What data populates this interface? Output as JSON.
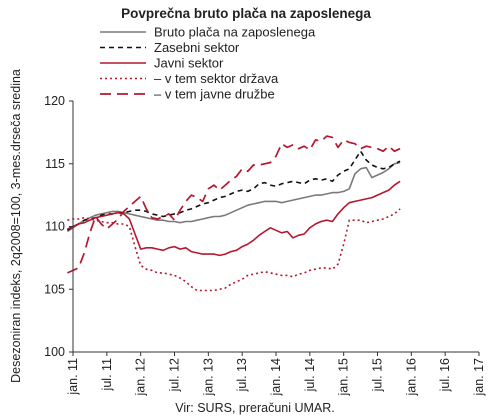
{
  "chart_data": {
    "type": "line",
    "title": "Povprečna bruto plača na zaposlenega",
    "ylabel": "Desezoniran indeks, 2q2008=100, 3-mes.drseča sredina",
    "source": "Vir: SURS, preračuni UMAR.",
    "ylim": [
      100,
      120
    ],
    "yticks": [
      100,
      105,
      110,
      115,
      120
    ],
    "xticks": [
      "jan. 11",
      "jul. 11",
      "jan. 12",
      "jul. 12",
      "jan. 13",
      "jul. 13",
      "jan. 14",
      "jul. 14",
      "jan. 15",
      "jul. 15",
      "jan. 16",
      "jul. 16",
      "jan. 17"
    ],
    "x_start": "2011-01",
    "x_end": "2017-01",
    "legend_position": "top-left",
    "grid": false,
    "series": [
      {
        "name": "Bruto plača na zaposlenega",
        "color": "#7a7a7a",
        "dash": "solid",
        "start": "2010-12",
        "values": [
          109.6,
          109.9,
          110.2,
          110.5,
          110.7,
          110.9,
          111.0,
          111.1,
          111.2,
          111.2,
          111.1,
          111.0,
          110.9,
          110.8,
          110.7,
          110.6,
          110.5,
          110.5,
          110.4,
          110.4,
          110.3,
          110.4,
          110.4,
          110.5,
          110.6,
          110.7,
          110.8,
          110.8,
          110.9,
          111.1,
          111.3,
          111.5,
          111.7,
          111.8,
          111.9,
          112.0,
          112.0,
          112.0,
          111.9,
          112.0,
          112.1,
          112.2,
          112.3,
          112.4,
          112.5,
          112.5,
          112.6,
          112.7,
          112.7,
          112.8,
          113.0,
          114.2,
          114.6,
          114.7,
          113.9,
          114.1,
          114.3,
          114.6,
          115.0,
          115.1
        ]
      },
      {
        "name": "Zasebni sektor",
        "color": "#111111",
        "dash": "dashed",
        "start": "2010-12",
        "values": [
          109.7,
          110.0,
          110.2,
          110.5,
          110.6,
          110.7,
          110.9,
          111.0,
          111.0,
          111.1,
          111.1,
          111.2,
          111.3,
          111.3,
          111.2,
          111.0,
          110.9,
          110.8,
          110.9,
          111.0,
          111.1,
          111.3,
          111.4,
          111.6,
          111.8,
          111.9,
          112.1,
          112.3,
          112.4,
          112.6,
          112.8,
          112.9,
          112.8,
          113.0,
          113.4,
          113.5,
          113.3,
          113.2,
          113.4,
          113.5,
          113.6,
          113.5,
          113.4,
          113.7,
          113.8,
          113.7,
          113.8,
          113.6,
          114.1,
          114.4,
          114.6,
          115.3,
          116.0,
          115.3,
          114.9,
          114.7,
          114.6,
          114.7,
          115.0,
          115.2
        ]
      },
      {
        "name": "Javni sektor",
        "color": "#b5172e",
        "dash": "solid",
        "start": "2010-12",
        "values": [
          109.8,
          110.0,
          110.2,
          110.3,
          110.5,
          110.7,
          110.8,
          110.9,
          111.0,
          111.1,
          111.0,
          110.6,
          109.4,
          108.2,
          108.3,
          108.3,
          108.2,
          108.1,
          108.3,
          108.4,
          108.2,
          108.3,
          108.0,
          107.9,
          107.8,
          107.8,
          107.8,
          107.7,
          107.8,
          108.0,
          108.1,
          108.4,
          108.6,
          108.9,
          109.3,
          109.6,
          109.9,
          109.7,
          109.5,
          109.6,
          109.1,
          109.3,
          109.4,
          109.9,
          110.2,
          110.4,
          110.5,
          110.4,
          111.0,
          111.5,
          111.9,
          112.0,
          112.1,
          112.2,
          112.3,
          112.5,
          112.7,
          112.9,
          113.3,
          113.6
        ]
      },
      {
        "name": "– v tem sektor država",
        "color": "#b5172e",
        "dash": "dotted",
        "start": "2010-12",
        "values": [
          110.5,
          110.6,
          110.6,
          110.7,
          110.6,
          110.5,
          110.4,
          110.3,
          110.3,
          110.2,
          110.2,
          110.0,
          108.4,
          106.9,
          106.6,
          106.5,
          106.3,
          106.3,
          106.2,
          106.1,
          105.9,
          105.6,
          105.2,
          104.9,
          104.9,
          104.9,
          104.9,
          105.0,
          105.1,
          105.4,
          105.6,
          105.8,
          106.1,
          106.2,
          106.3,
          106.4,
          106.3,
          106.2,
          106.1,
          106.1,
          106.0,
          106.2,
          106.3,
          106.5,
          106.6,
          106.7,
          106.7,
          106.6,
          107.0,
          108.6,
          110.5,
          110.5,
          110.5,
          110.3,
          110.4,
          110.5,
          110.6,
          110.8,
          111.0,
          111.4
        ]
      },
      {
        "name": "– v tem javne družbe",
        "color": "#b5172e",
        "dash": "longdash",
        "start": "2010-12",
        "values": [
          106.3,
          106.5,
          106.7,
          107.9,
          109.5,
          110.8,
          110.2,
          109.8,
          110.2,
          110.6,
          111.2,
          111.6,
          112.0,
          112.4,
          111.4,
          110.7,
          110.6,
          110.8,
          111.0,
          110.5,
          111.3,
          112.0,
          112.5,
          112.3,
          112.0,
          113.0,
          113.3,
          112.9,
          113.3,
          113.7,
          114.0,
          114.6,
          114.4,
          114.9,
          114.9,
          115.0,
          115.1,
          115.6,
          116.6,
          116.3,
          116.5,
          116.2,
          116.4,
          116.1,
          116.9,
          116.8,
          117.2,
          117.1,
          116.3,
          116.9,
          116.7,
          116.6,
          116.2,
          116.4,
          116.3,
          116.2,
          116.0,
          116.4,
          116.0,
          116.2
        ]
      }
    ]
  }
}
